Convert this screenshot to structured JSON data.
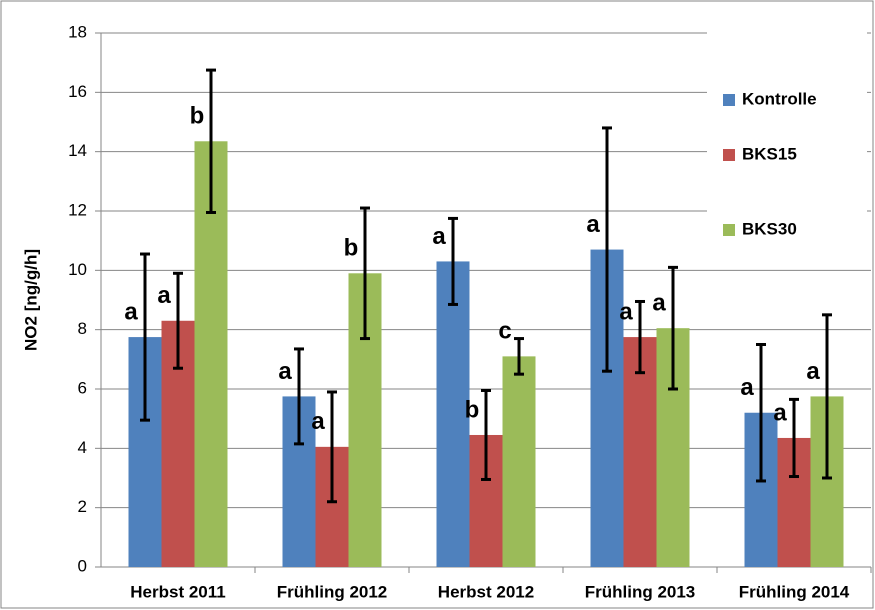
{
  "chart_data": {
    "type": "bar",
    "y_label": "NO2  [ng/g/h]",
    "categories": [
      "Herbst 2011",
      "Frühling 2012",
      "Herbst 2012",
      "Frühling 2013",
      "Frühling 2014"
    ],
    "series": [
      {
        "name": "Kontrolle",
        "color": "#4f81bd",
        "values": [
          7.75,
          5.75,
          10.3,
          10.7,
          5.2
        ],
        "errors": [
          2.8,
          1.6,
          1.45,
          4.1,
          2.3
        ],
        "letters": [
          "a",
          "a",
          "a",
          "a",
          "a"
        ]
      },
      {
        "name": "BKS15",
        "color": "#c0504d",
        "values": [
          8.3,
          4.05,
          4.45,
          7.75,
          4.35
        ],
        "errors": [
          1.6,
          1.85,
          1.5,
          1.2,
          1.3
        ],
        "letters": [
          "a",
          "a",
          "b",
          "a",
          "a"
        ]
      },
      {
        "name": "BKS30",
        "color": "#9bbb59",
        "values": [
          14.35,
          9.9,
          7.1,
          8.05,
          5.75
        ],
        "errors": [
          2.4,
          2.2,
          0.6,
          2.05,
          2.75
        ],
        "letters": [
          "b",
          "b",
          "c",
          "a",
          "a"
        ]
      }
    ],
    "ylim": [
      0,
      18
    ],
    "yticks": [
      0,
      2,
      4,
      6,
      8,
      10,
      12,
      14,
      16,
      18
    ],
    "grid": true,
    "legend": "top-right"
  }
}
